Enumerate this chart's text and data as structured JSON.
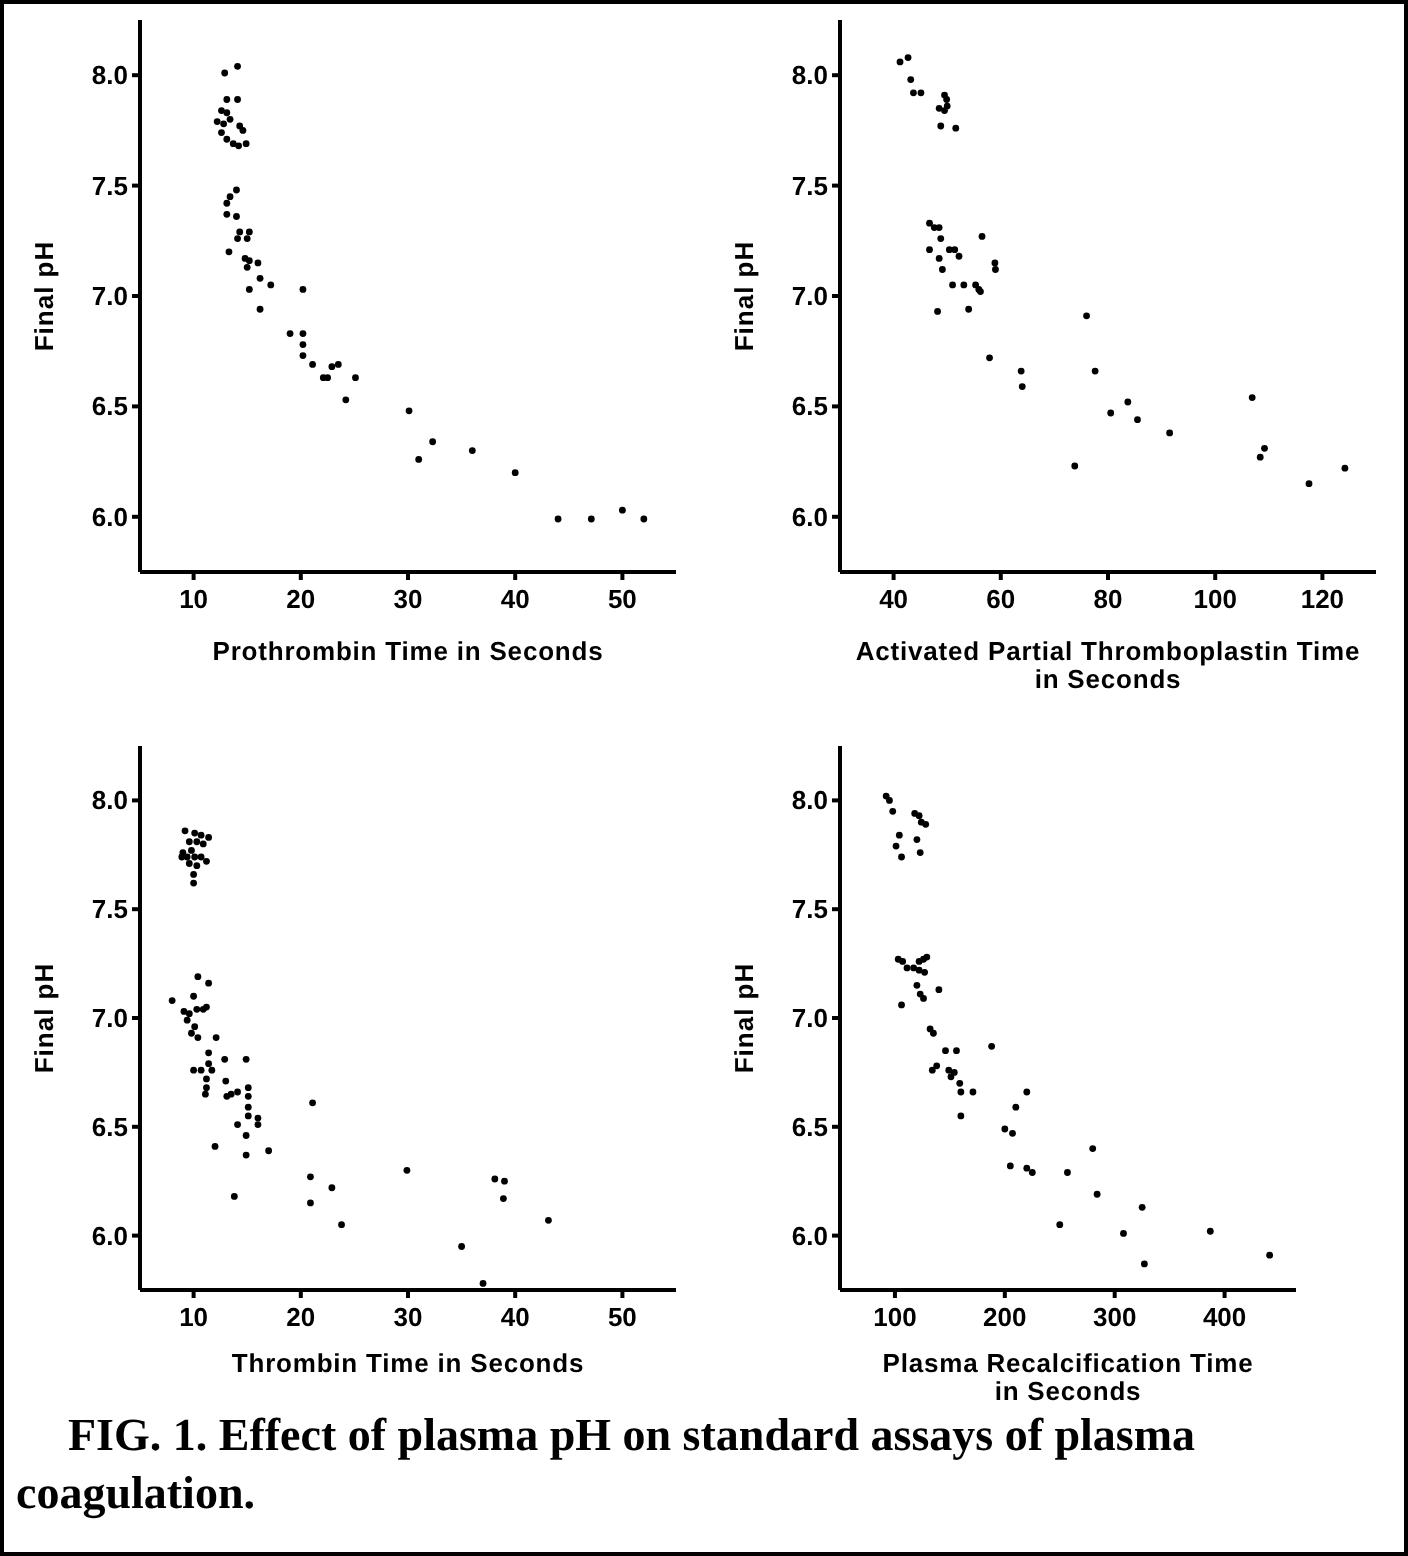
{
  "chart_data": [
    {
      "type": "scatter",
      "xlabel": "Prothrombin Time in Seconds",
      "ylabel": "Final pH",
      "xlim": [
        5,
        55
      ],
      "ylim": [
        5.75,
        8.25
      ],
      "xticks": [
        10,
        20,
        30,
        40,
        50
      ],
      "yticks": [
        {
          "value": 6,
          "label": "6.0"
        },
        {
          "value": 6.5,
          "label": "6.5"
        },
        {
          "value": 7,
          "label": "7.0"
        },
        {
          "value": 7.5,
          "label": "7.5"
        },
        {
          "value": 8,
          "label": "8.0"
        }
      ],
      "marker": "circle",
      "color": "#000000",
      "x": [
        12.9,
        14.1,
        13.1,
        14.1,
        12.6,
        13.1,
        12.2,
        12.8,
        13.4,
        14.3,
        14.6,
        12.6,
        13.1,
        13.7,
        14.2,
        14.9,
        14.0,
        13.4,
        13.1,
        13.1,
        14.0,
        14.3,
        15.2,
        14.1,
        15.0,
        13.3,
        14.8,
        15.2,
        16.0,
        15.0,
        16.2,
        17.2,
        15.2,
        20.2,
        16.2,
        19.0,
        20.2,
        20.2,
        20.2,
        21.1,
        22.9,
        23.5,
        22.1,
        22.5,
        25.1,
        24.2,
        30.1,
        31.0,
        32.3,
        36.0,
        40.0,
        44.0,
        47.1,
        50.0,
        52.0
      ],
      "values": [
        8.01,
        8.04,
        7.89,
        7.89,
        7.84,
        7.83,
        7.79,
        7.78,
        7.8,
        7.77,
        7.75,
        7.74,
        7.71,
        7.69,
        7.68,
        7.69,
        7.48,
        7.45,
        7.42,
        7.37,
        7.36,
        7.29,
        7.29,
        7.26,
        7.26,
        7.2,
        7.17,
        7.16,
        7.15,
        7.13,
        7.08,
        7.05,
        7.03,
        7.03,
        6.94,
        6.83,
        6.83,
        6.78,
        6.73,
        6.69,
        6.68,
        6.69,
        6.63,
        6.63,
        6.63,
        6.53,
        6.48,
        6.26,
        6.34,
        6.3,
        6.2,
        5.99,
        5.99,
        6.03,
        5.99
      ]
    },
    {
      "type": "scatter",
      "xlabel": "Activated Partial Thromboplastin Time in Seconds",
      "ylabel": "Final pH",
      "xlim": [
        30,
        130
      ],
      "ylim": [
        5.75,
        8.25
      ],
      "xticks": [
        40,
        60,
        80,
        100,
        120
      ],
      "yticks": [
        {
          "value": 6,
          "label": "6.0"
        },
        {
          "value": 6.5,
          "label": "6.5"
        },
        {
          "value": 7,
          "label": "7.0"
        },
        {
          "value": 7.5,
          "label": "7.5"
        },
        {
          "value": 8,
          "label": "8.0"
        }
      ],
      "marker": "circle",
      "color": "#000000",
      "x": [
        41.2,
        42.7,
        43.2,
        43.7,
        45.1,
        49.5,
        49.9,
        48.5,
        49.5,
        50.0,
        48.8,
        51.6,
        46.7,
        47.6,
        48.5,
        48.8,
        46.7,
        50.4,
        51.4,
        52.2,
        48.5,
        49.1,
        56.5,
        58.9,
        59.0,
        51.0,
        53.1,
        55.3,
        55.9,
        56.2,
        48.2,
        54.0,
        57.9,
        63.8,
        64.0,
        76.0,
        77.6,
        73.8,
        80.5,
        83.7,
        85.5,
        91.5,
        106.9,
        108.4,
        109.2,
        117.5,
        124.2
      ],
      "values": [
        8.06,
        8.08,
        7.98,
        7.92,
        7.92,
        7.91,
        7.89,
        7.85,
        7.84,
        7.86,
        7.77,
        7.76,
        7.33,
        7.31,
        7.31,
        7.26,
        7.21,
        7.21,
        7.21,
        7.18,
        7.17,
        7.12,
        7.27,
        7.15,
        7.12,
        7.05,
        7.05,
        7.05,
        7.03,
        7.02,
        6.93,
        6.94,
        6.72,
        6.66,
        6.59,
        6.91,
        6.66,
        6.23,
        6.47,
        6.52,
        6.44,
        6.38,
        6.54,
        6.27,
        6.31,
        6.15,
        6.22
      ]
    },
    {
      "type": "scatter",
      "xlabel": "Thrombin Time in Seconds",
      "ylabel": "Final pH",
      "xlim": [
        5,
        55
      ],
      "ylim": [
        5.75,
        8.25
      ],
      "xticks": [
        10,
        20,
        30,
        40,
        50
      ],
      "yticks": [
        {
          "value": 6,
          "label": "6.0"
        },
        {
          "value": 6.5,
          "label": "6.5"
        },
        {
          "value": 7,
          "label": "7.0"
        },
        {
          "value": 7.5,
          "label": "7.5"
        },
        {
          "value": 8,
          "label": "8.0"
        }
      ],
      "marker": "circle",
      "color": "#000000",
      "x": [
        9.2,
        10.1,
        10.7,
        11.4,
        9.6,
        10.3,
        10.9,
        9.0,
        9.8,
        8.9,
        9.4,
        10.1,
        10.7,
        11.2,
        9.6,
        10.3,
        10.0,
        10.0,
        10.4,
        11.4,
        8.0,
        10.0,
        9.1,
        9.6,
        10.3,
        10.9,
        11.2,
        9.4,
        10.1,
        9.8,
        10.4,
        12.1,
        11.4,
        11.4,
        10.0,
        10.7,
        11.7,
        12.9,
        11.2,
        11.2,
        11.1,
        13.0,
        13.1,
        13.5,
        14.1,
        14.9,
        15.1,
        15.1,
        15.1,
        15.1,
        14.1,
        16.0,
        16.0,
        14.9,
        14.9,
        12.0,
        17.0,
        21.1,
        20.9,
        20.9,
        22.9,
        23.8,
        13.8,
        29.9,
        35.0,
        37.0,
        38.1,
        39.0,
        38.9,
        43.1
      ],
      "values": [
        7.86,
        7.85,
        7.84,
        7.83,
        7.81,
        7.81,
        7.8,
        7.76,
        7.77,
        7.74,
        7.74,
        7.74,
        7.74,
        7.72,
        7.71,
        7.7,
        7.66,
        7.62,
        7.19,
        7.16,
        7.08,
        7.1,
        7.03,
        7.02,
        7.04,
        7.04,
        7.05,
        6.99,
        6.96,
        6.93,
        6.91,
        6.91,
        6.84,
        6.79,
        6.76,
        6.76,
        6.76,
        6.81,
        6.72,
        6.68,
        6.65,
        6.71,
        6.64,
        6.65,
        6.66,
        6.81,
        6.68,
        6.64,
        6.59,
        6.55,
        6.51,
        6.54,
        6.51,
        6.46,
        6.37,
        6.41,
        6.39,
        6.61,
        6.27,
        6.15,
        6.22,
        6.05,
        6.18,
        6.3,
        5.95,
        5.78,
        6.26,
        6.25,
        6.17,
        6.07
      ]
    },
    {
      "type": "scatter",
      "xlabel": "Plasma Recalcification Time in Seconds",
      "ylabel": "Final pH",
      "xlim": [
        50,
        465
      ],
      "ylim": [
        5.75,
        8.25
      ],
      "xticks": [
        100,
        200,
        300,
        400
      ],
      "yticks": [
        {
          "value": 6,
          "label": "6.0"
        },
        {
          "value": 6.5,
          "label": "6.5"
        },
        {
          "value": 7,
          "label": "7.0"
        },
        {
          "value": 7.5,
          "label": "7.5"
        },
        {
          "value": 8,
          "label": "8.0"
        }
      ],
      "marker": "circle",
      "color": "#000000",
      "x": [
        92,
        95,
        98,
        118,
        122,
        124,
        128,
        104,
        101,
        106,
        120,
        123,
        103,
        107,
        111,
        117,
        122,
        126,
        129,
        122,
        127,
        120,
        123,
        126,
        106,
        140,
        132,
        135,
        146,
        156,
        134,
        138,
        149,
        154,
        151,
        159,
        160,
        171,
        188,
        160,
        210,
        220,
        200,
        207,
        205,
        220,
        225,
        257,
        250,
        280,
        284,
        308,
        325,
        327,
        387,
        441
      ],
      "values": [
        8.02,
        8.0,
        7.95,
        7.94,
        7.93,
        7.9,
        7.89,
        7.84,
        7.79,
        7.74,
        7.82,
        7.76,
        7.27,
        7.26,
        7.23,
        7.23,
        7.26,
        7.27,
        7.28,
        7.22,
        7.21,
        7.15,
        7.11,
        7.09,
        7.06,
        7.13,
        6.95,
        6.93,
        6.85,
        6.85,
        6.76,
        6.78,
        6.76,
        6.75,
        6.73,
        6.7,
        6.66,
        6.66,
        6.87,
        6.55,
        6.59,
        6.66,
        6.49,
        6.47,
        6.32,
        6.31,
        6.29,
        6.29,
        6.05,
        6.4,
        6.19,
        6.01,
        6.13,
        5.87,
        6.02,
        5.91
      ],
      "annotations": [
        "FIG. 1. Effect of plasma pH on standard assays of plasma coagulation."
      ]
    }
  ]
}
